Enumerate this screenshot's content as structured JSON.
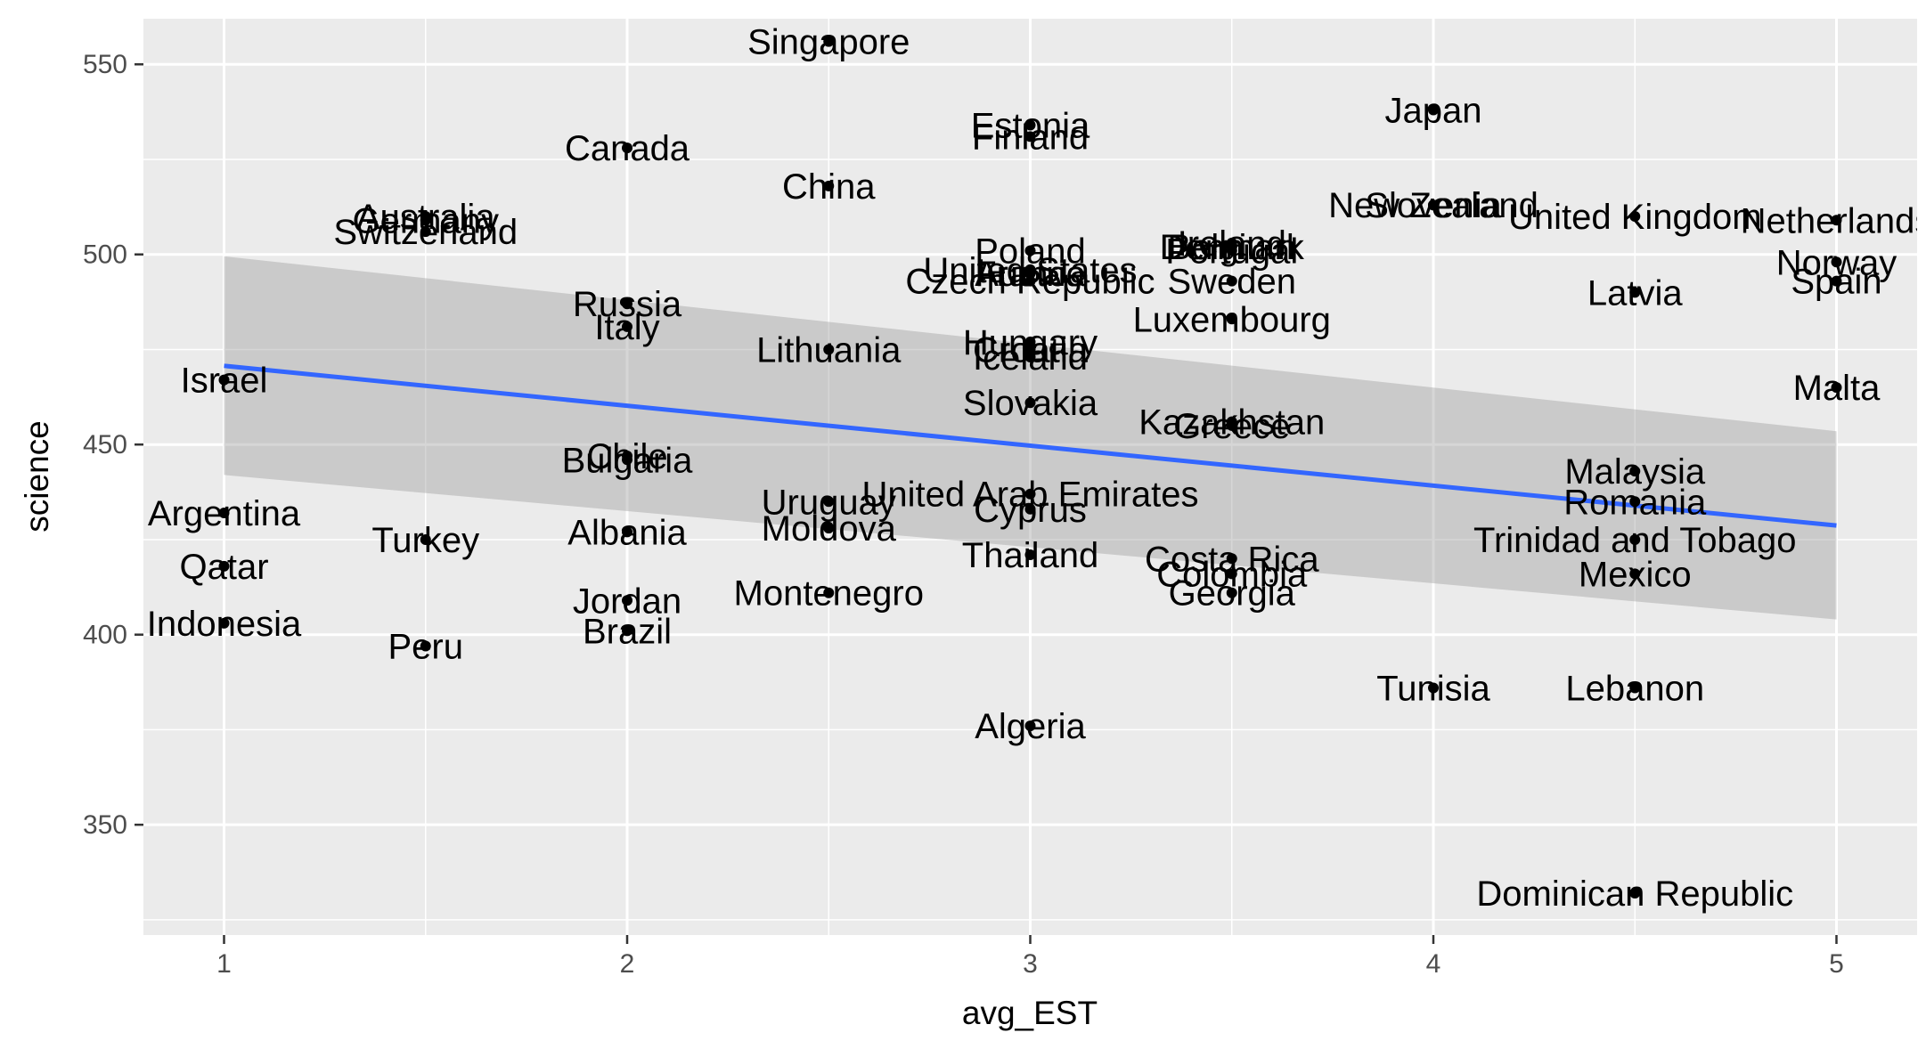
{
  "chart_data": {
    "type": "scatter",
    "xlabel": "avg_EST",
    "ylabel": "science",
    "xlim": [
      0.8,
      5.2
    ],
    "ylim": [
      321,
      562
    ],
    "x_ticks": [
      1,
      2,
      3,
      4,
      5
    ],
    "y_ticks": [
      350,
      400,
      450,
      500,
      550
    ],
    "grid": true,
    "points": [
      {
        "label": "Singapore",
        "x": 2.5,
        "y": 556
      },
      {
        "label": "Japan",
        "x": 4.0,
        "y": 538
      },
      {
        "label": "Estonia",
        "x": 3.0,
        "y": 534
      },
      {
        "label": "Finland",
        "x": 3.0,
        "y": 531
      },
      {
        "label": "Canada",
        "x": 2.0,
        "y": 528
      },
      {
        "label": "China",
        "x": 2.5,
        "y": 518
      },
      {
        "label": "New Zealand",
        "x": 4.0,
        "y": 513
      },
      {
        "label": "Slovenia",
        "x": 4.0,
        "y": 513
      },
      {
        "label": "Australia",
        "x": 1.5,
        "y": 510
      },
      {
        "label": "Germany",
        "x": 1.5,
        "y": 509
      },
      {
        "label": "United Kingdom",
        "x": 4.5,
        "y": 510
      },
      {
        "label": "Netherlands",
        "x": 5.0,
        "y": 509
      },
      {
        "label": "Switzerland",
        "x": 1.5,
        "y": 506
      },
      {
        "label": "Poland",
        "x": 3.0,
        "y": 501
      },
      {
        "label": "Ireland",
        "x": 3.5,
        "y": 503
      },
      {
        "label": "Belgium",
        "x": 3.5,
        "y": 502
      },
      {
        "label": "Denmark",
        "x": 3.5,
        "y": 502
      },
      {
        "label": "Portugal",
        "x": 3.5,
        "y": 501
      },
      {
        "label": "Norway",
        "x": 5.0,
        "y": 498
      },
      {
        "label": "United States",
        "x": 3.0,
        "y": 496
      },
      {
        "label": "Austria",
        "x": 3.0,
        "y": 495
      },
      {
        "label": "France",
        "x": 3.0,
        "y": 495
      },
      {
        "label": "Sweden",
        "x": 3.5,
        "y": 493
      },
      {
        "label": "Czech Republic",
        "x": 3.0,
        "y": 493
      },
      {
        "label": "Spain",
        "x": 5.0,
        "y": 493
      },
      {
        "label": "Latvia",
        "x": 4.5,
        "y": 490
      },
      {
        "label": "Russia",
        "x": 2.0,
        "y": 487
      },
      {
        "label": "Luxembourg",
        "x": 3.5,
        "y": 483
      },
      {
        "label": "Italy",
        "x": 2.0,
        "y": 481
      },
      {
        "label": "Hungary",
        "x": 3.0,
        "y": 477
      },
      {
        "label": "Lithuania",
        "x": 2.5,
        "y": 475
      },
      {
        "label": "Croatia",
        "x": 3.0,
        "y": 475
      },
      {
        "label": "Iceland",
        "x": 3.0,
        "y": 473
      },
      {
        "label": "Israel",
        "x": 1.0,
        "y": 467
      },
      {
        "label": "Malta",
        "x": 5.0,
        "y": 465
      },
      {
        "label": "Slovakia",
        "x": 3.0,
        "y": 461
      },
      {
        "label": "Kazakhstan",
        "x": 3.5,
        "y": 456
      },
      {
        "label": "Greece",
        "x": 3.5,
        "y": 455
      },
      {
        "label": "Chile",
        "x": 2.0,
        "y": 447
      },
      {
        "label": "Bulgaria",
        "x": 2.0,
        "y": 446
      },
      {
        "label": "Malaysia",
        "x": 4.5,
        "y": 443
      },
      {
        "label": "United Arab Emirates",
        "x": 3.0,
        "y": 437
      },
      {
        "label": "Uruguay",
        "x": 2.5,
        "y": 435
      },
      {
        "label": "Romania",
        "x": 4.5,
        "y": 435
      },
      {
        "label": "Cyprus",
        "x": 3.0,
        "y": 433
      },
      {
        "label": "Moldova",
        "x": 2.5,
        "y": 428
      },
      {
        "label": "Argentina",
        "x": 1.0,
        "y": 432
      },
      {
        "label": "Albania",
        "x": 2.0,
        "y": 427
      },
      {
        "label": "Turkey",
        "x": 1.5,
        "y": 425
      },
      {
        "label": "Trinidad and Tobago",
        "x": 4.5,
        "y": 425
      },
      {
        "label": "Thailand",
        "x": 3.0,
        "y": 421
      },
      {
        "label": "Costa Rica",
        "x": 3.5,
        "y": 420
      },
      {
        "label": "Qatar",
        "x": 1.0,
        "y": 418
      },
      {
        "label": "Colombia",
        "x": 3.5,
        "y": 416
      },
      {
        "label": "Mexico",
        "x": 4.5,
        "y": 416
      },
      {
        "label": "Montenegro",
        "x": 2.5,
        "y": 411
      },
      {
        "label": "Georgia",
        "x": 3.5,
        "y": 411
      },
      {
        "label": "Jordan",
        "x": 2.0,
        "y": 409
      },
      {
        "label": "Indonesia",
        "x": 1.0,
        "y": 403
      },
      {
        "label": "Brazil",
        "x": 2.0,
        "y": 401
      },
      {
        "label": "Peru",
        "x": 1.5,
        "y": 397
      },
      {
        "label": "Lebanon",
        "x": 4.5,
        "y": 386
      },
      {
        "label": "Tunisia",
        "x": 4.0,
        "y": 386
      },
      {
        "label": "Algeria",
        "x": 3.0,
        "y": 376
      },
      {
        "label": "Dominican Republic",
        "x": 4.5,
        "y": 332
      }
    ],
    "smooth": {
      "method": "lm",
      "x": [
        1,
        5
      ],
      "y": [
        470.7,
        428.7
      ],
      "ci_lower": [
        442.0,
        404.0
      ],
      "ci_upper": [
        499.5,
        453.5
      ]
    },
    "colors": {
      "panel": "#ebebeb",
      "grid": "#ffffff",
      "point": "#000000",
      "line": "#3366ff",
      "ribbon": "#999999"
    }
  }
}
